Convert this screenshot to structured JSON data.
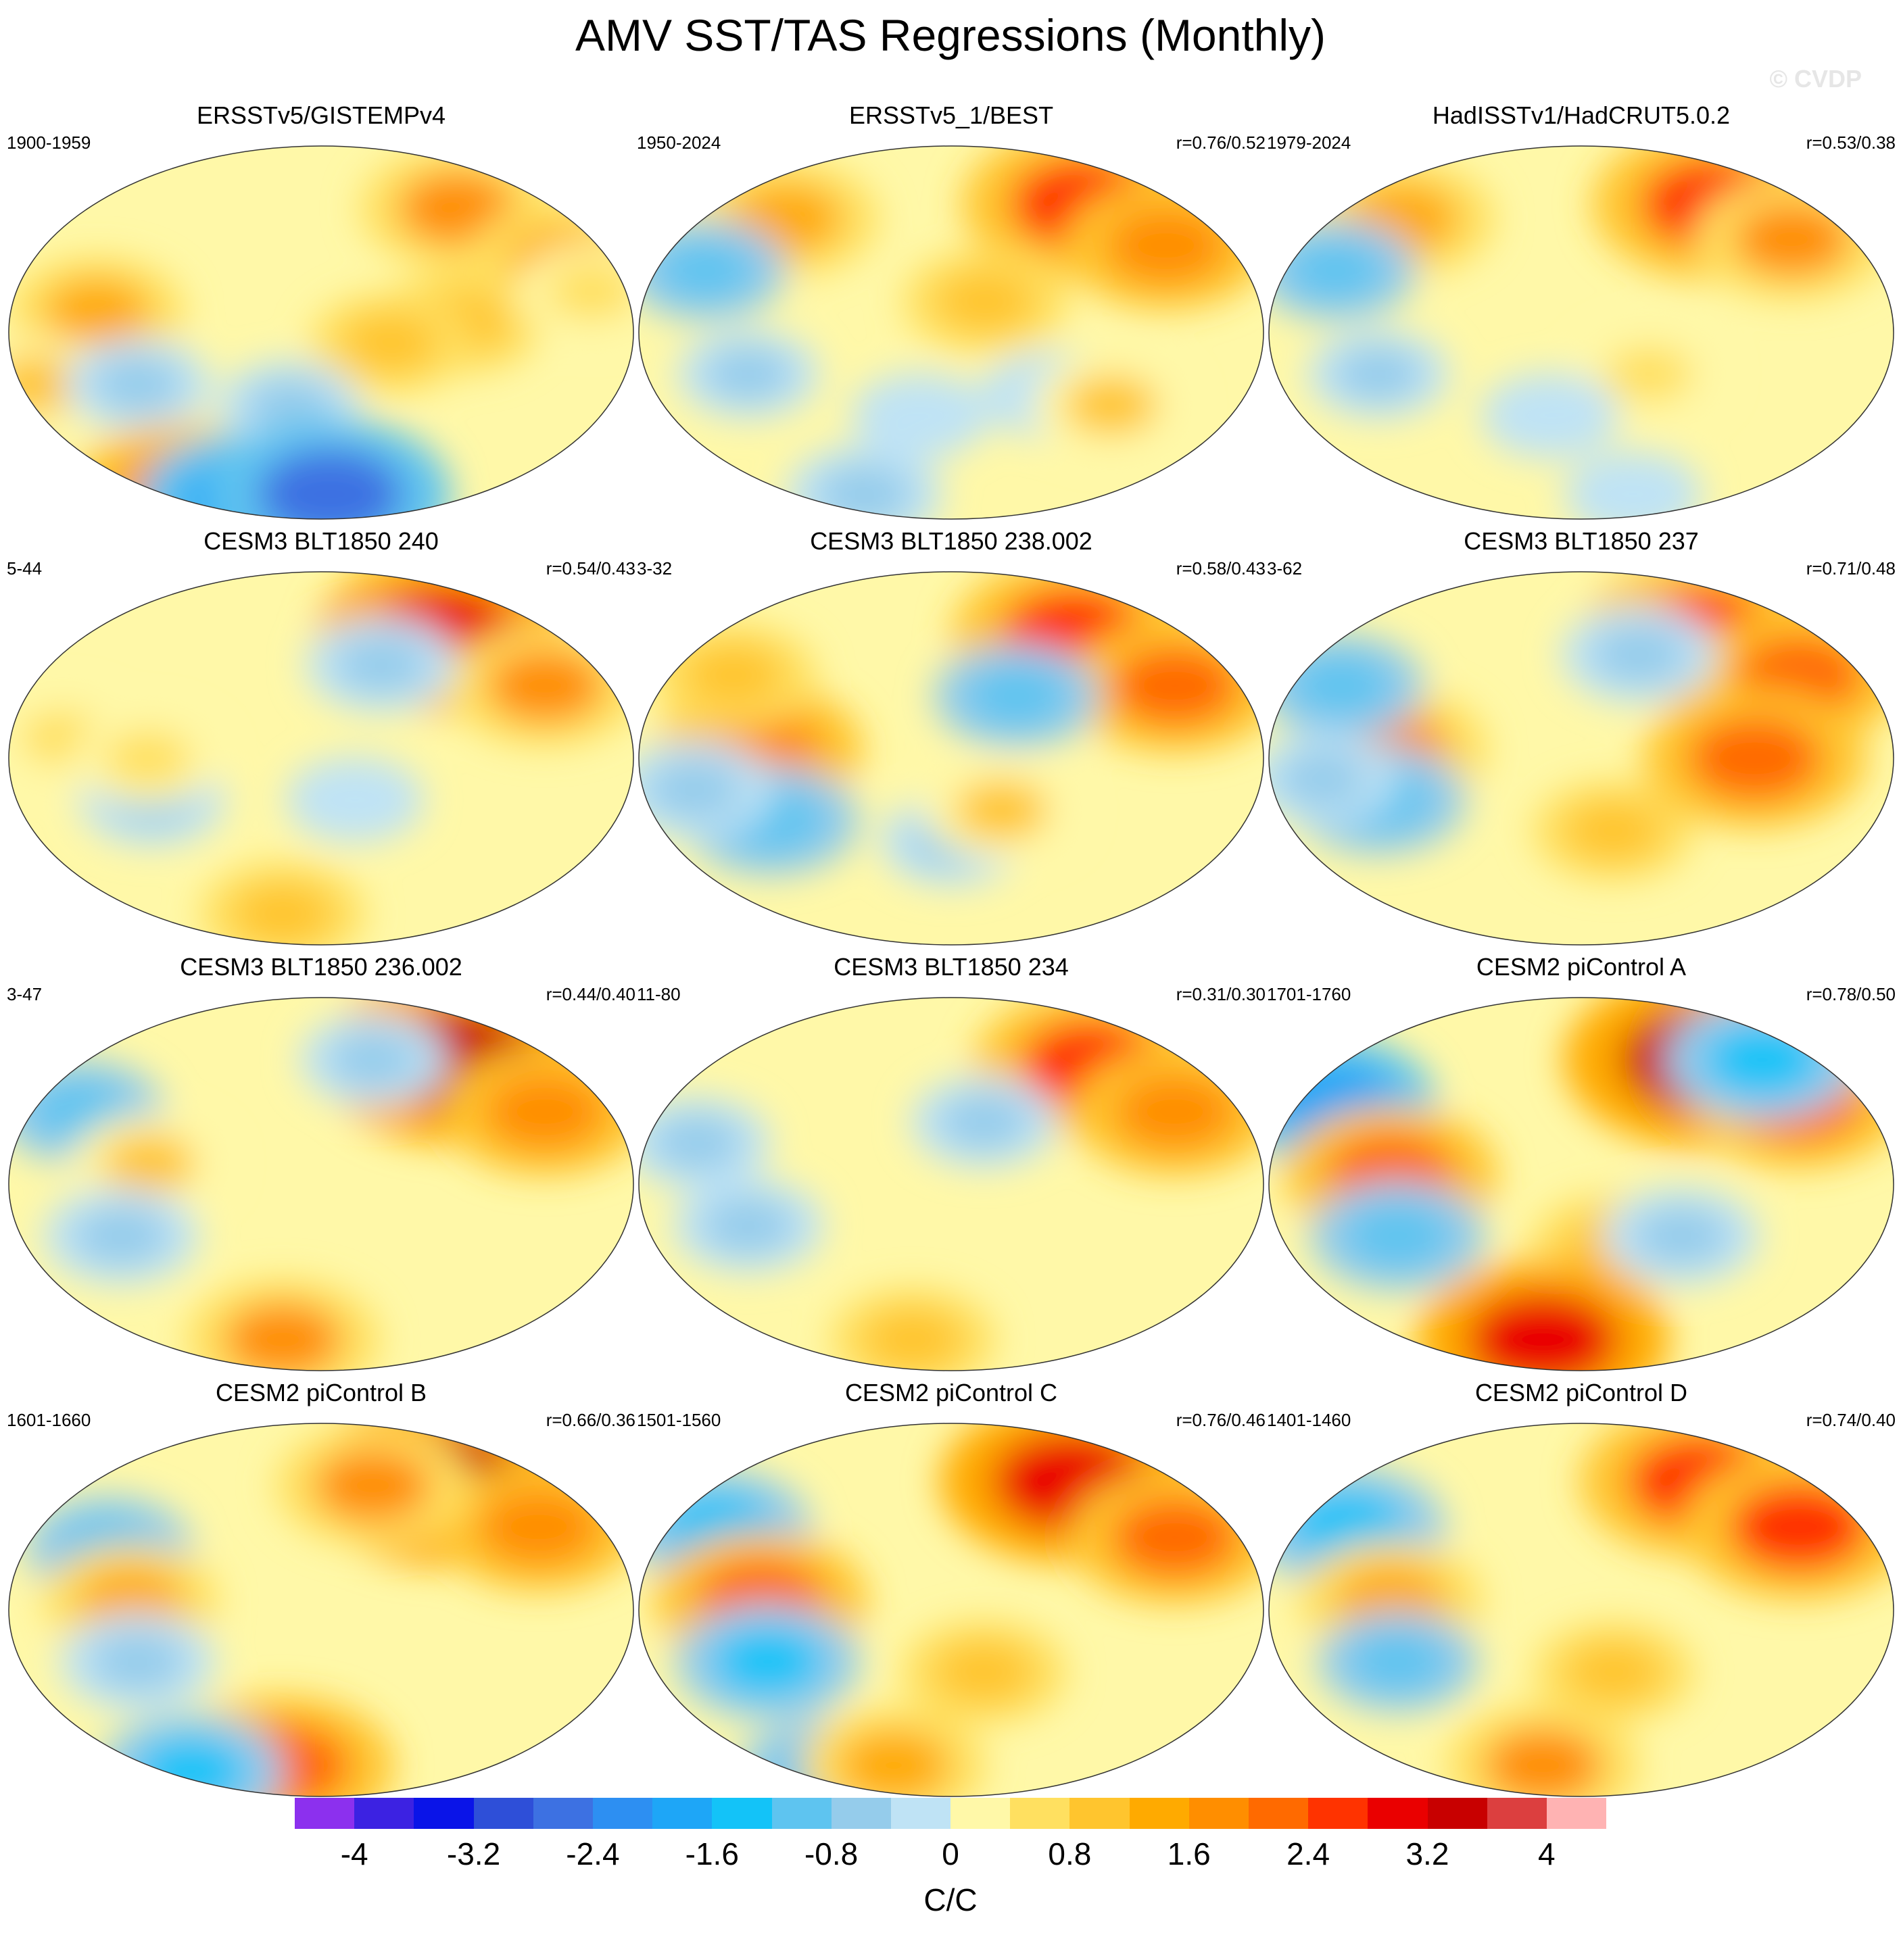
{
  "figure": {
    "title": "AMV SST/TAS Regressions (Monthly)",
    "watermark": "© CVDP"
  },
  "chart_data": {
    "type": "heatmap",
    "title": "AMV SST/TAS Regressions (Monthly)",
    "projection": "global map (Robinson-like ellipse), 4 rows x 3 columns of panels",
    "units": "C/C",
    "colorbar": {
      "min": -4.4,
      "max": 4.4,
      "step": 0.4,
      "tick_labels": [
        "-4",
        "-3.2",
        "-2.4",
        "-1.6",
        "-0.8",
        "0",
        "0.8",
        "1.6",
        "2.4",
        "3.2",
        "4"
      ],
      "tick_values": [
        -4,
        -3.2,
        -2.4,
        -1.6,
        -0.8,
        0,
        0.8,
        1.6,
        2.4,
        3.2,
        4
      ],
      "colors": [
        "#8c30ee",
        "#3c22e2",
        "#0a14e8",
        "#2e4fd8",
        "#3d71e2",
        "#2d8ff2",
        "#1ea6f7",
        "#13c3f8",
        "#5ec4f0",
        "#95cceb",
        "#bfe3f5",
        "#fff8a8",
        "#ffe060",
        "#ffc52e",
        "#ffaa00",
        "#ff8e00",
        "#ff6a00",
        "#ff3300",
        "#ea0000",
        "#c80000",
        "#dc3f3f",
        "#ffb3b3"
      ]
    },
    "panels": [
      {
        "title": "ERSSTv5/GISTEMPv4",
        "period": "1900-1959",
        "correlation": "",
        "features": [
          {
            "lon": 105,
            "lat": 60,
            "v": 1.6
          },
          {
            "lon": 150,
            "lat": 35,
            "v": 1.4
          },
          {
            "lon": 80,
            "lat": 5,
            "v": 1.0
          },
          {
            "lon": -130,
            "lat": 10,
            "v": 1.2
          },
          {
            "lon": -170,
            "lat": -25,
            "v": 0.8
          },
          {
            "lon": 40,
            "lat": -5,
            "v": 0.9
          },
          {
            "lon": -110,
            "lat": -25,
            "v": -0.6
          },
          {
            "lon": -20,
            "lat": -35,
            "v": -0.5
          },
          {
            "lon": 160,
            "lat": 20,
            "v": 0.7
          },
          {
            "lon": -150,
            "lat": -75,
            "v": 1.8
          },
          {
            "lon": -100,
            "lat": -80,
            "v": -1.8
          },
          {
            "lon": 10,
            "lat": -78,
            "v": -2.6
          }
        ]
      },
      {
        "title": "ERSSTv5_1/BEST",
        "period": "1950-2024",
        "correlation": "r=0.76/0.52",
        "features": [
          {
            "lon": 105,
            "lat": 62,
            "v": 2.6
          },
          {
            "lon": 140,
            "lat": 42,
            "v": 1.8
          },
          {
            "lon": -120,
            "lat": 55,
            "v": 1.4
          },
          {
            "lon": 20,
            "lat": 15,
            "v": 1.0
          },
          {
            "lon": -150,
            "lat": 30,
            "v": -0.9
          },
          {
            "lon": -120,
            "lat": -20,
            "v": -0.5
          },
          {
            "lon": 60,
            "lat": -30,
            "v": -0.4
          },
          {
            "lon": 100,
            "lat": -35,
            "v": 0.8
          },
          {
            "lon": -100,
            "lat": -78,
            "v": -0.8
          },
          {
            "lon": -20,
            "lat": -40,
            "v": -0.4
          }
        ]
      },
      {
        "title": "HadISSTv1/HadCRUT5.0.2",
        "period": "1979-2024",
        "correlation": "r=0.53/0.38",
        "features": [
          {
            "lon": 105,
            "lat": 62,
            "v": 2.6
          },
          {
            "lon": 140,
            "lat": 45,
            "v": 1.6
          },
          {
            "lon": -130,
            "lat": 55,
            "v": 1.4
          },
          {
            "lon": -150,
            "lat": 30,
            "v": -0.9
          },
          {
            "lon": -120,
            "lat": -20,
            "v": -0.5
          },
          {
            "lon": 40,
            "lat": -20,
            "v": 0.6
          },
          {
            "lon": -20,
            "lat": -40,
            "v": -0.4
          },
          {
            "lon": 60,
            "lat": -78,
            "v": -0.4
          }
        ]
      },
      {
        "title": "CESM3 BLT1850 240",
        "period": "5-44",
        "correlation": "r=0.54/0.43",
        "features": [
          {
            "lon": 95,
            "lat": 60,
            "v": 2.8
          },
          {
            "lon": 140,
            "lat": 35,
            "v": 1.6
          },
          {
            "lon": 40,
            "lat": 45,
            "v": -0.7
          },
          {
            "lon": -150,
            "lat": 10,
            "v": 0.5
          },
          {
            "lon": -100,
            "lat": -20,
            "v": -0.6
          },
          {
            "lon": 20,
            "lat": -20,
            "v": -0.4
          },
          {
            "lon": -40,
            "lat": -75,
            "v": 1.0
          },
          {
            "lon": -100,
            "lat": 0,
            "v": 0.6
          }
        ]
      },
      {
        "title": "CESM3 BLT1850 238.002",
        "period": "3-32",
        "correlation": "r=0.58/0.43",
        "features": [
          {
            "lon": 95,
            "lat": 60,
            "v": 2.6
          },
          {
            "lon": 140,
            "lat": 35,
            "v": 2.0
          },
          {
            "lon": -110,
            "lat": 5,
            "v": 1.8
          },
          {
            "lon": -140,
            "lat": 40,
            "v": 1.0
          },
          {
            "lon": -110,
            "lat": -30,
            "v": -1.2
          },
          {
            "lon": -150,
            "lat": -15,
            "v": -0.8
          },
          {
            "lon": 40,
            "lat": 30,
            "v": -1.0
          },
          {
            "lon": 0,
            "lat": -40,
            "v": -0.5
          },
          {
            "lon": 30,
            "lat": -25,
            "v": 0.8
          }
        ]
      },
      {
        "title": "CESM3 BLT1850 237",
        "period": "3-62",
        "correlation": "r=0.71/0.48",
        "features": [
          {
            "lon": 95,
            "lat": 60,
            "v": 2.6
          },
          {
            "lon": 140,
            "lat": 40,
            "v": 2.0
          },
          {
            "lon": -110,
            "lat": 5,
            "v": 1.6
          },
          {
            "lon": -150,
            "lat": 35,
            "v": -1.0
          },
          {
            "lon": 40,
            "lat": 50,
            "v": -0.8
          },
          {
            "lon": -120,
            "lat": -20,
            "v": -1.2
          },
          {
            "lon": -150,
            "lat": -10,
            "v": -0.6
          },
          {
            "lon": 20,
            "lat": -35,
            "v": 0.9
          },
          {
            "lon": 100,
            "lat": 0,
            "v": 2.2
          }
        ]
      },
      {
        "title": "CESM3 BLT1850 236.002",
        "period": "3-47",
        "correlation": "r=0.44/0.40",
        "features": [
          {
            "lon": 105,
            "lat": 60,
            "v": 3.2
          },
          {
            "lon": 140,
            "lat": 35,
            "v": 1.8
          },
          {
            "lon": -150,
            "lat": 35,
            "v": -1.0
          },
          {
            "lon": -100,
            "lat": 10,
            "v": 0.8
          },
          {
            "lon": -120,
            "lat": -25,
            "v": -0.8
          },
          {
            "lon": -40,
            "lat": -75,
            "v": 1.6
          },
          {
            "lon": 40,
            "lat": 60,
            "v": -0.6
          }
        ]
      },
      {
        "title": "CESM3 BLT1850 234",
        "period": "11-80",
        "correlation": "r=0.31/0.30",
        "features": [
          {
            "lon": 105,
            "lat": 58,
            "v": 2.4
          },
          {
            "lon": 140,
            "lat": 35,
            "v": 1.8
          },
          {
            "lon": -150,
            "lat": 20,
            "v": -0.6
          },
          {
            "lon": -120,
            "lat": -20,
            "v": -0.7
          },
          {
            "lon": 20,
            "lat": 30,
            "v": -0.6
          },
          {
            "lon": -40,
            "lat": -75,
            "v": 1.0
          }
        ]
      },
      {
        "title": "CESM2 piControl A",
        "period": "1701-1760",
        "correlation": "r=0.78/0.50",
        "features": [
          {
            "lon": 95,
            "lat": 60,
            "v": 3.4
          },
          {
            "lon": 140,
            "lat": 40,
            "v": 2.0
          },
          {
            "lon": -160,
            "lat": 40,
            "v": -1.8
          },
          {
            "lon": 140,
            "lat": 60,
            "v": -1.6
          },
          {
            "lon": -110,
            "lat": 5,
            "v": 2.0
          },
          {
            "lon": -110,
            "lat": -25,
            "v": -1.2
          },
          {
            "lon": 20,
            "lat": -30,
            "v": 1.0
          },
          {
            "lon": 60,
            "lat": -25,
            "v": -0.8
          },
          {
            "lon": -40,
            "lat": -75,
            "v": 2.8
          }
        ]
      },
      {
        "title": "CESM2 piControl B",
        "period": "1601-1660",
        "correlation": "r=0.66/0.36",
        "features": [
          {
            "lon": 95,
            "lat": 62,
            "v": 3.2
          },
          {
            "lon": 140,
            "lat": 40,
            "v": 1.8
          },
          {
            "lon": -130,
            "lat": 30,
            "v": -1.0
          },
          {
            "lon": -110,
            "lat": 5,
            "v": 1.2
          },
          {
            "lon": -110,
            "lat": -25,
            "v": -0.8
          },
          {
            "lon": -40,
            "lat": -75,
            "v": 2.2
          },
          {
            "lon": -150,
            "lat": -78,
            "v": -1.4
          },
          {
            "lon": 40,
            "lat": 60,
            "v": 1.6
          }
        ]
      },
      {
        "title": "CESM2 piControl C",
        "period": "1501-1560",
        "correlation": "r=0.76/0.46",
        "features": [
          {
            "lon": 95,
            "lat": 62,
            "v": 3.0
          },
          {
            "lon": 140,
            "lat": 35,
            "v": 2.0
          },
          {
            "lon": -150,
            "lat": 40,
            "v": -1.4
          },
          {
            "lon": -110,
            "lat": 5,
            "v": 2.0
          },
          {
            "lon": -110,
            "lat": -25,
            "v": -1.4
          },
          {
            "lon": 20,
            "lat": -30,
            "v": 1.0
          },
          {
            "lon": -150,
            "lat": -78,
            "v": -1.0
          },
          {
            "lon": -60,
            "lat": -75,
            "v": 1.4
          }
        ]
      },
      {
        "title": "CESM2 piControl D",
        "period": "1401-1460",
        "correlation": "r=0.74/0.40",
        "features": [
          {
            "lon": 95,
            "lat": 62,
            "v": 2.6
          },
          {
            "lon": 140,
            "lat": 40,
            "v": 2.4
          },
          {
            "lon": -150,
            "lat": 40,
            "v": -1.6
          },
          {
            "lon": -110,
            "lat": 5,
            "v": 1.4
          },
          {
            "lon": -110,
            "lat": -25,
            "v": -0.9
          },
          {
            "lon": 20,
            "lat": -30,
            "v": 0.9
          },
          {
            "lon": -40,
            "lat": -75,
            "v": 1.6
          }
        ]
      }
    ]
  }
}
